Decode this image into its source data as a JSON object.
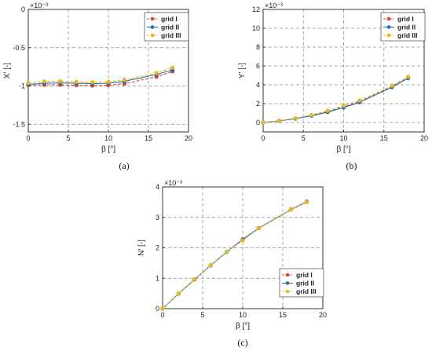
{
  "colors": {
    "series": [
      "#d9462b",
      "#1f6fb5",
      "#e8b923"
    ],
    "grid": "#8a8a8a",
    "axis": "#222222"
  },
  "chart_data": [
    {
      "id": "a",
      "type": "line",
      "caption": "(a)",
      "xlabel": "β [°]",
      "ylabel": "X' [-]",
      "exponent": "×10⁻³",
      "xlim": [
        0,
        20
      ],
      "ylim": [
        -1.6,
        0
      ],
      "xticks": [
        0,
        5,
        10,
        15,
        20
      ],
      "yticks": [
        -1.5,
        -1,
        -0.5,
        0
      ],
      "ytick_labels": [
        "-1.5",
        "-1",
        "-0.5",
        "0"
      ],
      "grid": true,
      "legend": "top-right",
      "series": [
        {
          "name": "grid I",
          "marker": "circle",
          "dash": "4,2",
          "x": [
            0,
            2,
            4,
            6,
            8,
            10,
            12,
            16,
            18
          ],
          "y": [
            -0.99,
            -0.985,
            -0.985,
            -0.99,
            -0.995,
            -0.99,
            -0.97,
            -0.88,
            -0.81
          ]
        },
        {
          "name": "grid II",
          "marker": "circle",
          "dash": "",
          "x": [
            0,
            2,
            4,
            6,
            8,
            10,
            12,
            16,
            18
          ],
          "y": [
            -0.98,
            -0.965,
            -0.96,
            -0.965,
            -0.97,
            -0.965,
            -0.94,
            -0.85,
            -0.79
          ]
        },
        {
          "name": "grid III",
          "marker": "circle",
          "dash": "4,2",
          "x": [
            0,
            2,
            4,
            6,
            8,
            10,
            12,
            16,
            18
          ],
          "y": [
            -0.96,
            -0.94,
            -0.94,
            -0.945,
            -0.95,
            -0.945,
            -0.92,
            -0.83,
            -0.76
          ]
        }
      ]
    },
    {
      "id": "b",
      "type": "line",
      "caption": "(b)",
      "xlabel": "β [°]",
      "ylabel": "Y' [-]",
      "exponent": "×10⁻³",
      "xlim": [
        0,
        20
      ],
      "ylim": [
        -1,
        12
      ],
      "xticks": [
        0,
        5,
        10,
        15,
        20
      ],
      "yticks": [
        0,
        2,
        4,
        6,
        8,
        10,
        12
      ],
      "ytick_labels": [
        "0",
        "2",
        "4",
        "6",
        "8",
        "10",
        "12"
      ],
      "grid": true,
      "legend": "top-right",
      "series": [
        {
          "name": "grid I",
          "marker": "circle",
          "dash": "4,2",
          "x": [
            0,
            2,
            4,
            6,
            8,
            10,
            12,
            16,
            18
          ],
          "y": [
            0,
            0.18,
            0.42,
            0.75,
            1.15,
            1.65,
            2.2,
            3.8,
            4.75
          ]
        },
        {
          "name": "grid II",
          "marker": "circle",
          "dash": "",
          "x": [
            0,
            2,
            4,
            6,
            8,
            10,
            12,
            16,
            18
          ],
          "y": [
            0,
            0.17,
            0.4,
            0.72,
            1.1,
            1.6,
            2.15,
            3.75,
            4.7
          ]
        },
        {
          "name": "grid III",
          "marker": "circle",
          "dash": "4,2",
          "x": [
            0,
            2,
            4,
            6,
            8,
            10,
            12,
            16,
            18
          ],
          "y": [
            0,
            0.2,
            0.45,
            0.8,
            1.25,
            1.8,
            2.35,
            3.9,
            4.85
          ]
        }
      ]
    },
    {
      "id": "c",
      "type": "line",
      "caption": "(c)",
      "xlabel": "β [°]",
      "ylabel": "N' [-]",
      "exponent": "×10⁻³",
      "xlim": [
        0,
        20
      ],
      "ylim": [
        0,
        4
      ],
      "xticks": [
        0,
        5,
        10,
        15,
        20
      ],
      "yticks": [
        0,
        1,
        2,
        3,
        4
      ],
      "ytick_labels": [
        "0",
        "1",
        "2",
        "3",
        "4"
      ],
      "grid": true,
      "legend": "bottom-right",
      "series": [
        {
          "name": "grid I",
          "marker": "circle",
          "dash": "4,2",
          "x": [
            0,
            2,
            4,
            6,
            8,
            10,
            12,
            16,
            18
          ],
          "y": [
            0,
            0.5,
            0.97,
            1.43,
            1.87,
            2.28,
            2.65,
            3.26,
            3.52
          ]
        },
        {
          "name": "grid II",
          "marker": "circle",
          "dash": "",
          "x": [
            0,
            2,
            4,
            6,
            8,
            10,
            12,
            16,
            18
          ],
          "y": [
            0,
            0.49,
            0.96,
            1.42,
            1.86,
            2.27,
            2.64,
            3.25,
            3.51
          ]
        },
        {
          "name": "grid III",
          "marker": "circle",
          "dash": "4,2",
          "x": [
            0,
            2,
            4,
            6,
            8,
            10,
            12,
            16,
            18
          ],
          "y": [
            0,
            0.5,
            0.97,
            1.43,
            1.87,
            2.24,
            2.64,
            3.25,
            3.5
          ]
        }
      ]
    }
  ]
}
